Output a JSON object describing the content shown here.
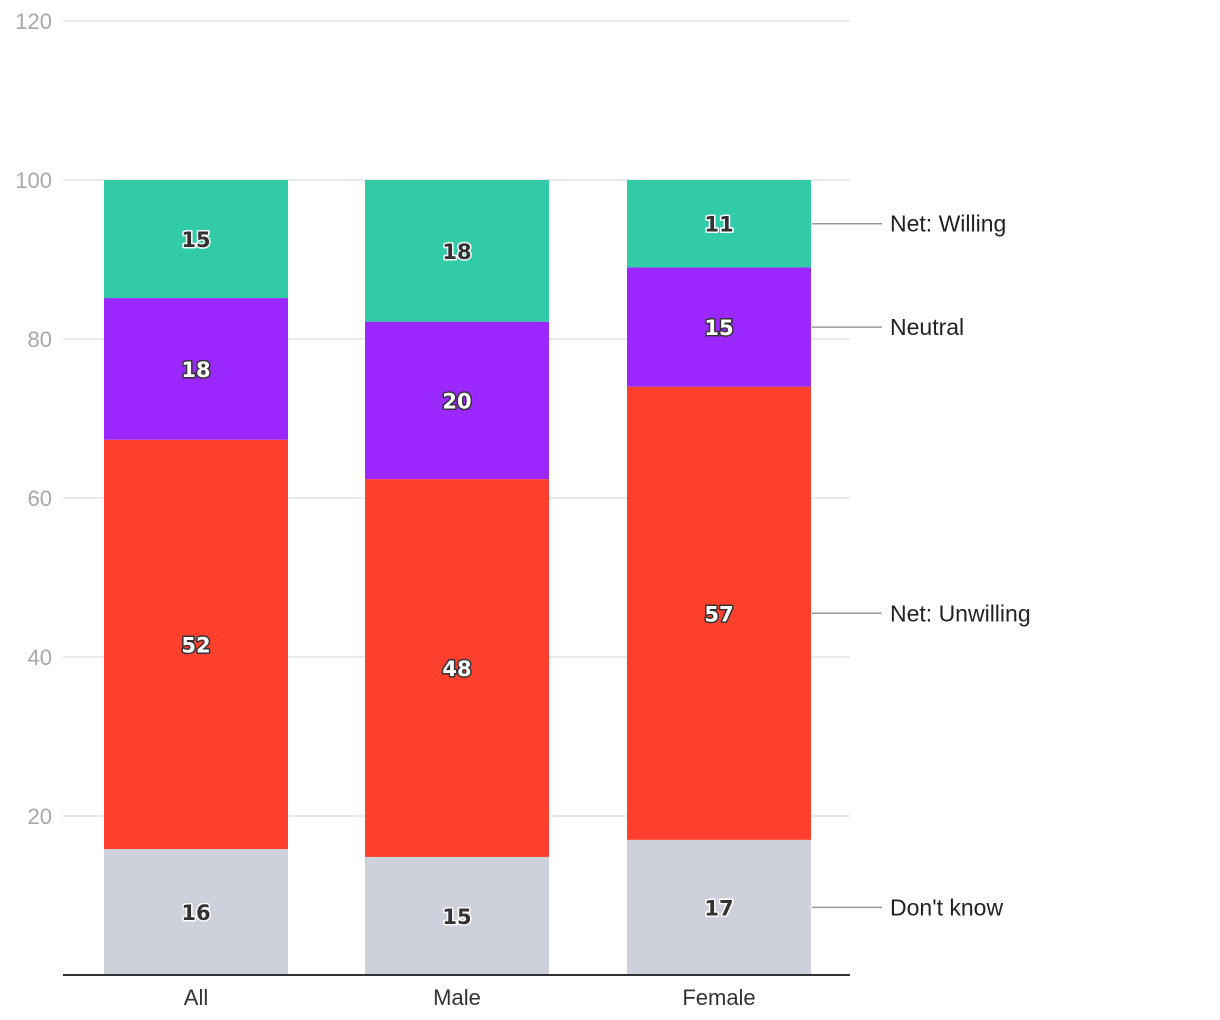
{
  "chart_data": {
    "type": "bar",
    "stacked": true,
    "categories": [
      "All",
      "Male",
      "Female"
    ],
    "series": [
      {
        "name": "Don't know",
        "color": "#cdd1dc",
        "values": [
          16,
          15,
          17
        ]
      },
      {
        "name": "Net: Unwilling",
        "color": "#ff402c",
        "values": [
          52,
          48,
          57
        ]
      },
      {
        "name": "Neutral",
        "color": "#9b29ff",
        "values": [
          18,
          20,
          15
        ]
      },
      {
        "name": "Net: Willing",
        "color": "#31cba8",
        "values": [
          15,
          18,
          11
        ]
      }
    ],
    "value_labels": [
      [
        "16",
        "15",
        "17"
      ],
      [
        "52",
        "48",
        "57"
      ],
      [
        "18",
        "20",
        "15"
      ],
      [
        "15",
        "18",
        "11"
      ]
    ],
    "y_ticks": [
      20,
      40,
      60,
      80,
      100,
      120
    ],
    "ylim": [
      0,
      120
    ],
    "grid": true,
    "legend_position": "right-inline",
    "title": "",
    "xlabel": "",
    "ylabel": ""
  }
}
